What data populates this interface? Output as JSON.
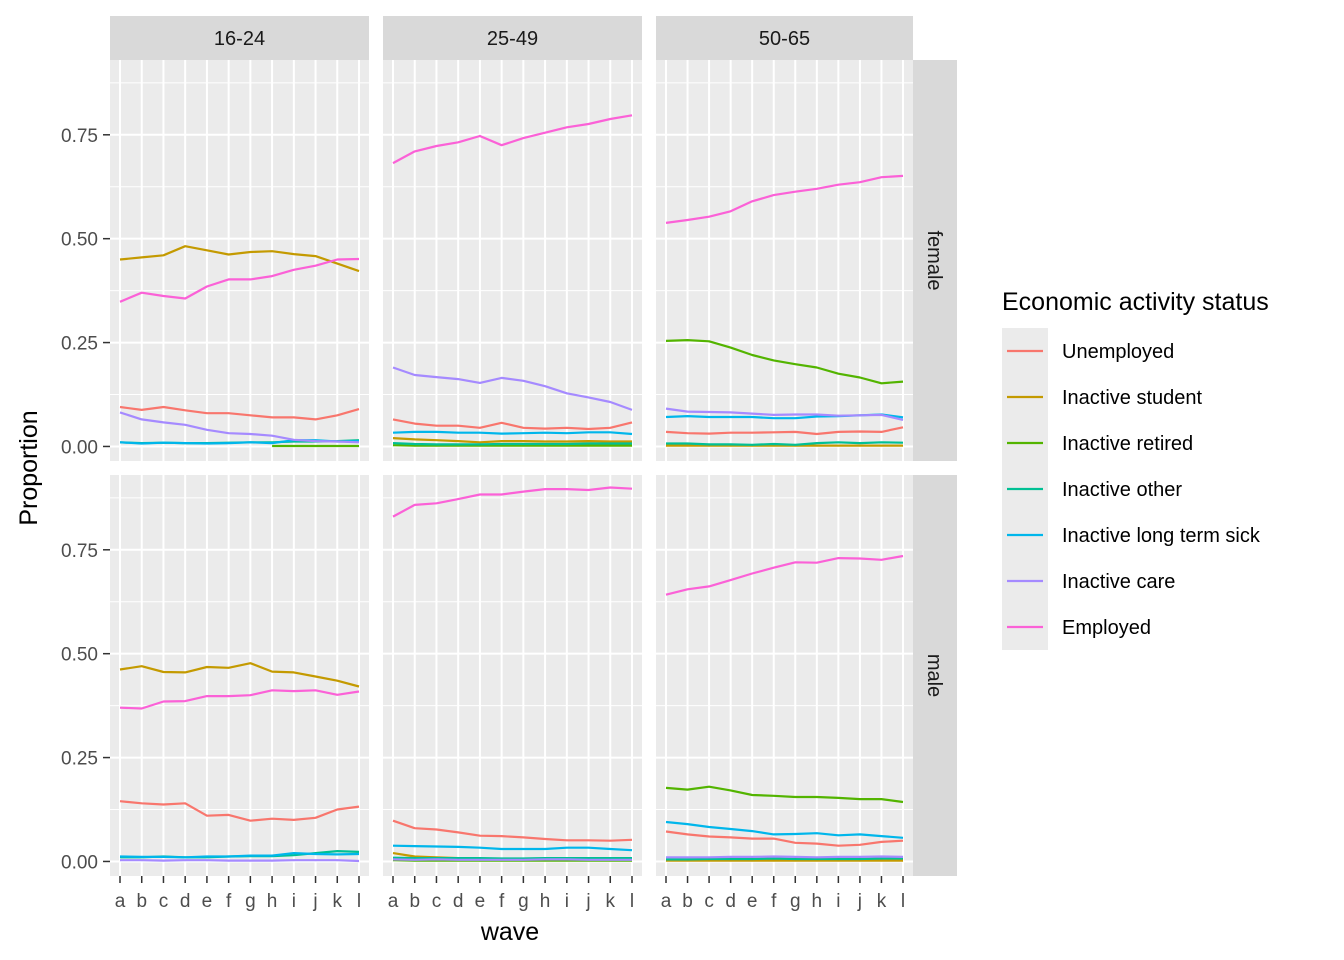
{
  "chart_data": {
    "type": "line",
    "xlabel": "wave",
    "ylabel": "Proportion",
    "x": [
      "a",
      "b",
      "c",
      "d",
      "e",
      "f",
      "g",
      "h",
      "i",
      "j",
      "k",
      "l"
    ],
    "ylim": [
      -0.035,
      0.93
    ],
    "y_ticks": [
      0.0,
      0.25,
      0.5,
      0.75
    ],
    "y_tick_labels": [
      "0.00",
      "0.25",
      "0.50",
      "0.75"
    ],
    "grid": true,
    "legend": {
      "title": "Economic activity status",
      "position": "right",
      "entries": [
        {
          "name": "Unemployed",
          "color": "#F8766D"
        },
        {
          "name": "Inactive student",
          "color": "#C49A00"
        },
        {
          "name": "Inactive retired",
          "color": "#53B400"
        },
        {
          "name": "Inactive other",
          "color": "#00C094"
        },
        {
          "name": "Inactive long term sick",
          "color": "#00B6EB"
        },
        {
          "name": "Inactive care",
          "color": "#A58AFF"
        },
        {
          "name": "Employed",
          "color": "#FB61D7"
        }
      ]
    },
    "col_facets": [
      "16-24",
      "25-49",
      "50-65"
    ],
    "row_facets": [
      "female",
      "male"
    ],
    "panels": [
      {
        "col": "16-24",
        "row": "female",
        "series": [
          {
            "name": "Unemployed",
            "values": [
              0.095,
              0.088,
              0.095,
              0.087,
              0.08,
              0.08,
              0.075,
              0.07,
              0.07,
              0.065,
              0.075,
              0.09
            ]
          },
          {
            "name": "Inactive student",
            "values": [
              0.45,
              0.455,
              0.46,
              0.482,
              0.472,
              0.462,
              0.468,
              0.47,
              0.463,
              0.458,
              0.44,
              0.422
            ]
          },
          {
            "name": "Inactive retired",
            "values": [
              null,
              null,
              null,
              null,
              null,
              null,
              null,
              0.001,
              0.001,
              0.001,
              0.001,
              0.001
            ]
          },
          {
            "name": "Inactive other",
            "values": [
              0.01,
              0.008,
              0.009,
              0.008,
              0.008,
              0.009,
              0.01,
              0.01,
              0.012,
              0.012,
              0.013,
              0.015
            ]
          },
          {
            "name": "Inactive long term sick",
            "values": [
              0.01,
              0.007,
              0.009,
              0.008,
              0.007,
              0.008,
              0.01,
              0.008,
              0.015,
              0.015,
              0.012,
              0.013
            ]
          },
          {
            "name": "Inactive care",
            "values": [
              0.082,
              0.065,
              0.058,
              0.052,
              0.04,
              0.032,
              0.03,
              0.026,
              0.016,
              0.013,
              0.012,
              0.01
            ]
          },
          {
            "name": "Employed",
            "values": [
              0.348,
              0.37,
              0.362,
              0.356,
              0.385,
              0.402,
              0.402,
              0.41,
              0.425,
              0.435,
              0.45,
              0.451
            ]
          }
        ]
      },
      {
        "col": "25-49",
        "row": "female",
        "series": [
          {
            "name": "Unemployed",
            "values": [
              0.065,
              0.055,
              0.05,
              0.05,
              0.045,
              0.057,
              0.045,
              0.043,
              0.045,
              0.042,
              0.045,
              0.058
            ]
          },
          {
            "name": "Inactive student",
            "values": [
              0.02,
              0.017,
              0.015,
              0.013,
              0.01,
              0.013,
              0.013,
              0.012,
              0.012,
              0.013,
              0.012,
              0.012
            ]
          },
          {
            "name": "Inactive retired",
            "values": [
              0.003,
              0.002,
              0.002,
              0.002,
              0.002,
              0.002,
              0.002,
              0.002,
              0.002,
              0.002,
              0.002,
              0.002
            ]
          },
          {
            "name": "Inactive other",
            "values": [
              0.008,
              0.006,
              0.005,
              0.005,
              0.005,
              0.006,
              0.006,
              0.006,
              0.006,
              0.007,
              0.007,
              0.007
            ]
          },
          {
            "name": "Inactive long term sick",
            "values": [
              0.033,
              0.035,
              0.035,
              0.033,
              0.033,
              0.031,
              0.032,
              0.033,
              0.032,
              0.034,
              0.034,
              0.03
            ]
          },
          {
            "name": "Inactive care",
            "values": [
              0.19,
              0.172,
              0.167,
              0.162,
              0.153,
              0.165,
              0.158,
              0.145,
              0.128,
              0.118,
              0.107,
              0.088
            ]
          },
          {
            "name": "Employed",
            "values": [
              0.682,
              0.71,
              0.723,
              0.732,
              0.747,
              0.725,
              0.742,
              0.755,
              0.768,
              0.776,
              0.788,
              0.797
            ]
          }
        ]
      },
      {
        "col": "50-65",
        "row": "female",
        "series": [
          {
            "name": "Unemployed",
            "values": [
              0.035,
              0.032,
              0.031,
              0.033,
              0.033,
              0.034,
              0.035,
              0.03,
              0.035,
              0.036,
              0.035,
              0.046
            ]
          },
          {
            "name": "Inactive student",
            "values": [
              0.002,
              0.002,
              0.002,
              0.002,
              0.002,
              0.002,
              0.002,
              0.002,
              0.002,
              0.002,
              0.002,
              0.002
            ]
          },
          {
            "name": "Inactive retired",
            "values": [
              0.254,
              0.256,
              0.253,
              0.238,
              0.22,
              0.207,
              0.198,
              0.19,
              0.175,
              0.166,
              0.152,
              0.156
            ]
          },
          {
            "name": "Inactive other",
            "values": [
              0.007,
              0.007,
              0.005,
              0.005,
              0.004,
              0.006,
              0.004,
              0.008,
              0.01,
              0.008,
              0.01,
              0.009
            ]
          },
          {
            "name": "Inactive long term sick",
            "values": [
              0.071,
              0.073,
              0.071,
              0.071,
              0.071,
              0.068,
              0.068,
              0.072,
              0.073,
              0.075,
              0.077,
              0.07
            ]
          },
          {
            "name": "Inactive care",
            "values": [
              0.091,
              0.084,
              0.083,
              0.082,
              0.079,
              0.076,
              0.077,
              0.077,
              0.074,
              0.075,
              0.076,
              0.064
            ]
          },
          {
            "name": "Employed",
            "values": [
              0.538,
              0.545,
              0.553,
              0.566,
              0.59,
              0.605,
              0.613,
              0.62,
              0.63,
              0.636,
              0.648,
              0.651
            ]
          }
        ]
      },
      {
        "col": "16-24",
        "row": "male",
        "series": [
          {
            "name": "Unemployed",
            "values": [
              0.145,
              0.14,
              0.137,
              0.14,
              0.11,
              0.112,
              0.098,
              0.103,
              0.1,
              0.105,
              0.125,
              0.132
            ]
          },
          {
            "name": "Inactive student",
            "values": [
              0.462,
              0.47,
              0.456,
              0.455,
              0.468,
              0.466,
              0.477,
              0.457,
              0.455,
              0.445,
              0.435,
              0.421
            ]
          },
          {
            "name": "Inactive retired",
            "values": [
              null,
              null,
              null,
              null,
              null,
              null,
              null,
              null,
              null,
              null,
              null,
              null
            ]
          },
          {
            "name": "Inactive other",
            "values": [
              0.01,
              0.01,
              0.012,
              0.01,
              0.01,
              0.012,
              0.013,
              0.013,
              0.015,
              0.02,
              0.025,
              0.023
            ]
          },
          {
            "name": "Inactive long term sick",
            "values": [
              0.012,
              0.011,
              0.011,
              0.01,
              0.012,
              0.012,
              0.014,
              0.014,
              0.02,
              0.018,
              0.017,
              0.018
            ]
          },
          {
            "name": "Inactive care",
            "values": [
              0.003,
              0.003,
              0.002,
              0.003,
              0.003,
              0.002,
              0.002,
              0.002,
              0.003,
              0.003,
              0.003,
              0.001
            ]
          },
          {
            "name": "Employed",
            "values": [
              0.37,
              0.368,
              0.385,
              0.386,
              0.398,
              0.398,
              0.4,
              0.412,
              0.41,
              0.412,
              0.401,
              0.409
            ]
          }
        ]
      },
      {
        "col": "25-49",
        "row": "male",
        "series": [
          {
            "name": "Unemployed",
            "values": [
              0.098,
              0.08,
              0.077,
              0.07,
              0.062,
              0.061,
              0.058,
              0.054,
              0.051,
              0.051,
              0.05,
              0.052
            ]
          },
          {
            "name": "Inactive student",
            "values": [
              0.02,
              0.012,
              0.01,
              0.008,
              0.006,
              0.006,
              0.005,
              0.005,
              0.004,
              0.004,
              0.004,
              0.004
            ]
          },
          {
            "name": "Inactive retired",
            "values": [
              0.003,
              0.002,
              0.002,
              0.002,
              0.002,
              0.002,
              0.002,
              0.002,
              0.002,
              0.002,
              0.002,
              0.002
            ]
          },
          {
            "name": "Inactive other",
            "values": [
              0.009,
              0.008,
              0.008,
              0.008,
              0.008,
              0.007,
              0.007,
              0.008,
              0.008,
              0.008,
              0.008,
              0.008
            ]
          },
          {
            "name": "Inactive long term sick",
            "values": [
              0.038,
              0.037,
              0.036,
              0.035,
              0.033,
              0.03,
              0.03,
              0.03,
              0.033,
              0.033,
              0.03,
              0.027
            ]
          },
          {
            "name": "Inactive care",
            "values": [
              0.005,
              0.004,
              0.005,
              0.004,
              0.004,
              0.004,
              0.004,
              0.005,
              0.005,
              0.004,
              0.004,
              0.004
            ]
          },
          {
            "name": "Employed",
            "values": [
              0.83,
              0.858,
              0.862,
              0.872,
              0.883,
              0.883,
              0.89,
              0.896,
              0.896,
              0.894,
              0.9,
              0.897
            ]
          }
        ]
      },
      {
        "col": "50-65",
        "row": "male",
        "series": [
          {
            "name": "Unemployed",
            "values": [
              0.072,
              0.065,
              0.06,
              0.058,
              0.055,
              0.055,
              0.045,
              0.043,
              0.038,
              0.04,
              0.047,
              0.05
            ]
          },
          {
            "name": "Inactive student",
            "values": [
              0.002,
              0.002,
              0.002,
              0.002,
              0.002,
              0.002,
              0.002,
              0.002,
              0.002,
              0.002,
              0.002,
              0.002
            ]
          },
          {
            "name": "Inactive retired",
            "values": [
              0.177,
              0.173,
              0.18,
              0.171,
              0.16,
              0.158,
              0.155,
              0.155,
              0.153,
              0.15,
              0.15,
              0.143
            ]
          },
          {
            "name": "Inactive other",
            "values": [
              0.005,
              0.005,
              0.006,
              0.006,
              0.006,
              0.007,
              0.006,
              0.006,
              0.006,
              0.006,
              0.007,
              0.007
            ]
          },
          {
            "name": "Inactive long term sick",
            "values": [
              0.095,
              0.09,
              0.083,
              0.078,
              0.073,
              0.065,
              0.066,
              0.068,
              0.063,
              0.065,
              0.061,
              0.057
            ]
          },
          {
            "name": "Inactive care",
            "values": [
              0.01,
              0.01,
              0.01,
              0.011,
              0.011,
              0.012,
              0.011,
              0.01,
              0.011,
              0.011,
              0.012,
              0.011
            ]
          },
          {
            "name": "Employed",
            "values": [
              0.642,
              0.655,
              0.662,
              0.677,
              0.693,
              0.707,
              0.72,
              0.719,
              0.73,
              0.729,
              0.726,
              0.735
            ]
          }
        ]
      }
    ]
  }
}
